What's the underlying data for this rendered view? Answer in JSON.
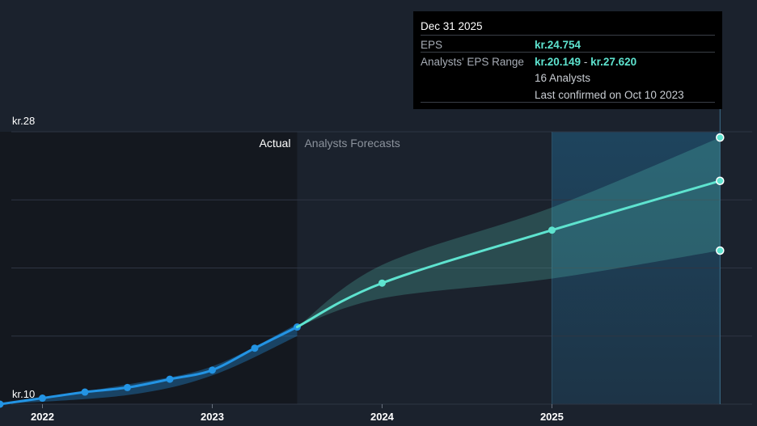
{
  "chart_data": {
    "type": "line",
    "y_tick_labels": [
      "kr.28",
      "kr.10"
    ],
    "x_tick_labels": [
      "2022",
      "2023",
      "2024",
      "2025"
    ],
    "x_ticks": [
      2022,
      2023,
      2024,
      2025
    ],
    "xlim": [
      2021.75,
      2026.16
    ],
    "ylim": [
      10,
      28
    ],
    "section_labels": {
      "actual": "Actual",
      "forecast": "Analysts Forecasts"
    },
    "actual_end_x": 2023.5,
    "highlight_start_x": 2025.0,
    "series": [
      {
        "key": "actual",
        "color": "#2394e4",
        "points": [
          [
            2021.75,
            10.0
          ],
          [
            2022.0,
            10.4
          ],
          [
            2022.25,
            10.8
          ],
          [
            2022.5,
            11.1
          ],
          [
            2022.75,
            11.65
          ],
          [
            2023.0,
            12.25
          ],
          [
            2023.25,
            13.7
          ],
          [
            2023.5,
            15.1
          ]
        ]
      },
      {
        "key": "forecast",
        "color": "#5ee3cf",
        "points": [
          [
            2023.5,
            15.1
          ],
          [
            2024.0,
            18.0
          ],
          [
            2025.0,
            21.5
          ],
          [
            2025.99,
            24.754
          ]
        ]
      }
    ],
    "actual_band": {
      "upper": [
        [
          2021.75,
          10.0
        ],
        [
          2022.5,
          11.3
        ],
        [
          2023.0,
          12.5
        ],
        [
          2023.5,
          15.3
        ]
      ],
      "lower": [
        [
          2021.75,
          10.0
        ],
        [
          2022.5,
          10.6
        ],
        [
          2023.0,
          11.9
        ],
        [
          2023.5,
          14.5
        ]
      ]
    },
    "forecast_band": {
      "upper": [
        [
          2023.5,
          15.1
        ],
        [
          2024.0,
          19.2
        ],
        [
          2025.0,
          23.0
        ],
        [
          2025.99,
          27.62
        ]
      ],
      "lower": [
        [
          2023.5,
          15.1
        ],
        [
          2024.0,
          17.0
        ],
        [
          2025.0,
          18.3
        ],
        [
          2025.99,
          20.149
        ]
      ]
    },
    "grid": true,
    "colors": {
      "background": "#1b222d",
      "grid": "#2e3543",
      "actual_shade": "#14181f",
      "highlight": "#1f4a66"
    }
  },
  "tooltip": {
    "date": "Dec 31 2025",
    "eps_label": "EPS",
    "eps_value": "kr.24.754",
    "range_label": "Analysts' EPS Range",
    "range_low": "kr.20.149",
    "range_sep": " - ",
    "range_high": "kr.27.620",
    "analysts": "16 Analysts",
    "confirmed": "Last confirmed on Oct 10 2023"
  }
}
